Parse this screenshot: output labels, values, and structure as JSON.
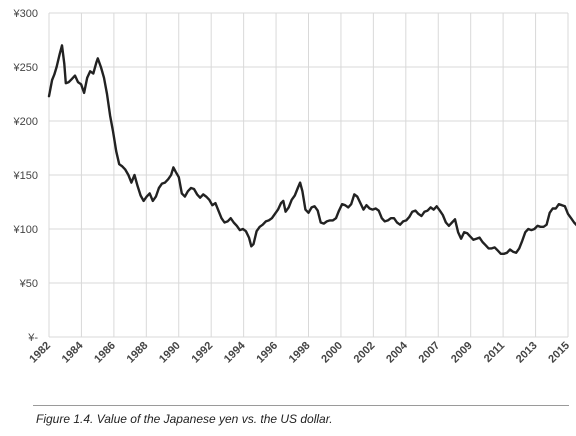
{
  "caption": "Figure 1.4. Value of the Japanese yen vs. the US dollar.",
  "colors": {
    "line": "#222222",
    "grid": "#d9d9d9",
    "axis_text": "#444444"
  },
  "chart_data": {
    "type": "line",
    "title": "",
    "xlabel": "",
    "ylabel": "",
    "grid": true,
    "legend": "none",
    "ylim": [
      0,
      300
    ],
    "xlim": [
      1982.0,
      2016.0
    ],
    "y_ticks": [
      {
        "value": 0,
        "label": "¥-"
      },
      {
        "value": 50,
        "label": "¥50"
      },
      {
        "value": 100,
        "label": "¥100"
      },
      {
        "value": 150,
        "label": "¥150"
      },
      {
        "value": 200,
        "label": "¥200"
      },
      {
        "value": 250,
        "label": "¥250"
      },
      {
        "value": 300,
        "label": "¥300"
      }
    ],
    "x_tick_labels": [
      "1982",
      "1984",
      "1986",
      "1988",
      "1990",
      "1992",
      "1994",
      "1996",
      "1998",
      "2000",
      "2002",
      "2004",
      "2007",
      "2009",
      "2011",
      "2013",
      "2015"
    ],
    "series": [
      {
        "values": [
          [
            1982.0,
            223
          ],
          [
            1982.2,
            238
          ],
          [
            1982.35,
            243
          ],
          [
            1982.5,
            250
          ],
          [
            1982.7,
            262
          ],
          [
            1982.85,
            270
          ],
          [
            1983.0,
            253
          ],
          [
            1983.1,
            235
          ],
          [
            1983.3,
            236
          ],
          [
            1983.5,
            239
          ],
          [
            1983.7,
            242
          ],
          [
            1983.9,
            236
          ],
          [
            1984.1,
            234
          ],
          [
            1984.3,
            226
          ],
          [
            1984.5,
            240
          ],
          [
            1984.7,
            246
          ],
          [
            1984.9,
            244
          ],
          [
            1985.1,
            254
          ],
          [
            1985.2,
            258
          ],
          [
            1985.4,
            250
          ],
          [
            1985.6,
            240
          ],
          [
            1985.8,
            225
          ],
          [
            1986.0,
            205
          ],
          [
            1986.2,
            190
          ],
          [
            1986.4,
            172
          ],
          [
            1986.6,
            160
          ],
          [
            1986.8,
            158
          ],
          [
            1987.0,
            155
          ],
          [
            1987.2,
            150
          ],
          [
            1987.4,
            143
          ],
          [
            1987.6,
            150
          ],
          [
            1987.8,
            140
          ],
          [
            1988.0,
            131
          ],
          [
            1988.2,
            126
          ],
          [
            1988.4,
            130
          ],
          [
            1988.6,
            133
          ],
          [
            1988.8,
            126
          ],
          [
            1989.0,
            130
          ],
          [
            1989.2,
            138
          ],
          [
            1989.4,
            142
          ],
          [
            1989.6,
            143
          ],
          [
            1989.8,
            146
          ],
          [
            1990.0,
            150
          ],
          [
            1990.15,
            157
          ],
          [
            1990.3,
            153
          ],
          [
            1990.5,
            148
          ],
          [
            1990.7,
            133
          ],
          [
            1990.9,
            130
          ],
          [
            1991.1,
            135
          ],
          [
            1991.3,
            138
          ],
          [
            1991.5,
            137
          ],
          [
            1991.7,
            132
          ],
          [
            1991.9,
            129
          ],
          [
            1992.1,
            132
          ],
          [
            1992.3,
            130
          ],
          [
            1992.5,
            127
          ],
          [
            1992.7,
            122
          ],
          [
            1992.9,
            124
          ],
          [
            1993.1,
            117
          ],
          [
            1993.3,
            110
          ],
          [
            1993.5,
            106
          ],
          [
            1993.7,
            107
          ],
          [
            1993.9,
            110
          ],
          [
            1994.1,
            106
          ],
          [
            1994.3,
            103
          ],
          [
            1994.5,
            99
          ],
          [
            1994.7,
            100
          ],
          [
            1994.9,
            98
          ],
          [
            1995.1,
            92
          ],
          [
            1995.25,
            84
          ],
          [
            1995.4,
            86
          ],
          [
            1995.6,
            98
          ],
          [
            1995.8,
            102
          ],
          [
            1996.0,
            104
          ],
          [
            1996.2,
            107
          ],
          [
            1996.4,
            108
          ],
          [
            1996.6,
            110
          ],
          [
            1996.8,
            114
          ],
          [
            1997.0,
            118
          ],
          [
            1997.2,
            124
          ],
          [
            1997.35,
            126
          ],
          [
            1997.5,
            116
          ],
          [
            1997.7,
            120
          ],
          [
            1997.9,
            127
          ],
          [
            1998.1,
            131
          ],
          [
            1998.3,
            138
          ],
          [
            1998.45,
            143
          ],
          [
            1998.6,
            135
          ],
          [
            1998.8,
            118
          ],
          [
            1999.0,
            115
          ],
          [
            1999.2,
            120
          ],
          [
            1999.4,
            121
          ],
          [
            1999.6,
            117
          ],
          [
            1999.8,
            106
          ],
          [
            2000.0,
            105
          ],
          [
            2000.2,
            107
          ],
          [
            2000.4,
            108
          ],
          [
            2000.6,
            108
          ],
          [
            2000.8,
            110
          ],
          [
            2001.0,
            117
          ],
          [
            2001.2,
            123
          ],
          [
            2001.4,
            122
          ],
          [
            2001.6,
            120
          ],
          [
            2001.8,
            123
          ],
          [
            2002.0,
            132
          ],
          [
            2002.2,
            130
          ],
          [
            2002.4,
            124
          ],
          [
            2002.6,
            118
          ],
          [
            2002.8,
            122
          ],
          [
            2003.0,
            119
          ],
          [
            2003.2,
            118
          ],
          [
            2003.4,
            119
          ],
          [
            2003.6,
            117
          ],
          [
            2003.8,
            110
          ],
          [
            2004.0,
            107
          ],
          [
            2004.2,
            108
          ],
          [
            2004.4,
            110
          ],
          [
            2004.6,
            110
          ],
          [
            2004.8,
            106
          ],
          [
            2005.0,
            104
          ],
          [
            2005.2,
            107
          ],
          [
            2005.4,
            108
          ],
          [
            2005.6,
            111
          ],
          [
            2005.8,
            116
          ],
          [
            2006.0,
            117
          ],
          [
            2006.2,
            114
          ],
          [
            2006.4,
            112
          ],
          [
            2006.6,
            116
          ],
          [
            2006.8,
            117
          ],
          [
            2007.0,
            120
          ],
          [
            2007.2,
            118
          ],
          [
            2007.4,
            121
          ],
          [
            2007.6,
            117
          ],
          [
            2007.8,
            113
          ],
          [
            2008.0,
            106
          ],
          [
            2008.2,
            103
          ],
          [
            2008.4,
            106
          ],
          [
            2008.6,
            109
          ],
          [
            2008.8,
            97
          ],
          [
            2009.0,
            91
          ],
          [
            2009.2,
            97
          ],
          [
            2009.4,
            96
          ],
          [
            2009.6,
            93
          ],
          [
            2009.8,
            90
          ],
          [
            2010.0,
            91
          ],
          [
            2010.2,
            92
          ],
          [
            2010.4,
            88
          ],
          [
            2010.6,
            85
          ],
          [
            2010.8,
            82
          ],
          [
            2011.0,
            82
          ],
          [
            2011.2,
            83
          ],
          [
            2011.4,
            80
          ],
          [
            2011.6,
            77
          ],
          [
            2011.8,
            77
          ],
          [
            2012.0,
            78
          ],
          [
            2012.2,
            81
          ],
          [
            2012.4,
            79
          ],
          [
            2012.6,
            78
          ],
          [
            2012.8,
            82
          ],
          [
            2013.0,
            89
          ],
          [
            2013.2,
            97
          ],
          [
            2013.4,
            100
          ],
          [
            2013.6,
            99
          ],
          [
            2013.8,
            100
          ],
          [
            2014.0,
            103
          ],
          [
            2014.2,
            102
          ],
          [
            2014.4,
            102
          ],
          [
            2014.6,
            104
          ],
          [
            2014.8,
            115
          ],
          [
            2015.0,
            119
          ],
          [
            2015.2,
            119
          ],
          [
            2015.4,
            123
          ],
          [
            2015.6,
            122
          ],
          [
            2015.8,
            121
          ],
          [
            2016.0,
            114
          ],
          [
            2016.2,
            110
          ],
          [
            2016.4,
            106
          ],
          [
            2016.6,
            103
          ],
          [
            2016.7,
            102
          ]
        ]
      }
    ]
  }
}
